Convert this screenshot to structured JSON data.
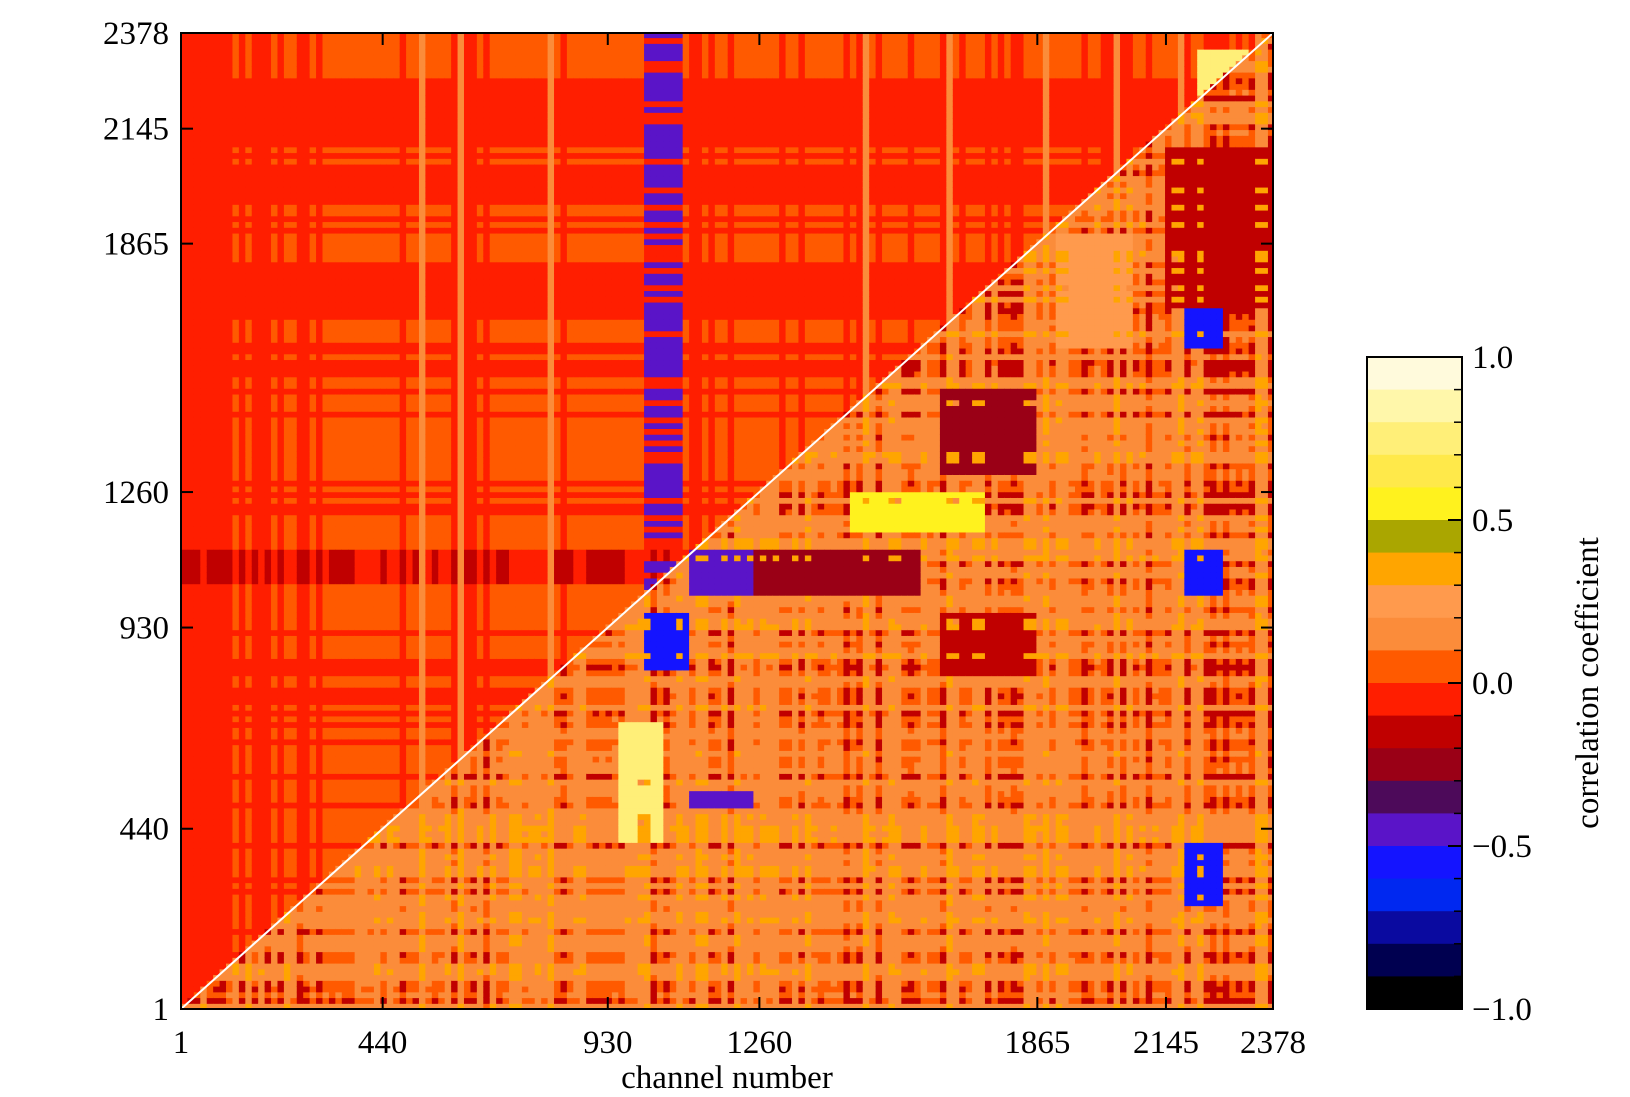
{
  "chart_data": {
    "type": "heatmap",
    "title": "",
    "xlabel": "channel number",
    "ylabel": "",
    "colorbar_label": "correlation coefficient",
    "xlim": [
      1,
      2378
    ],
    "ylim": [
      1,
      2378
    ],
    "x_ticks": [
      1,
      440,
      930,
      1260,
      1865,
      2145,
      2378
    ],
    "y_ticks": [
      1,
      440,
      930,
      1260,
      1865,
      2145,
      2378
    ],
    "x_tick_labels": [
      "1",
      "440",
      "930",
      "1260",
      "1865",
      "2145",
      "2378"
    ],
    "y_tick_labels": [
      "1",
      "440",
      "930",
      "1260",
      "1865",
      "2145",
      "2378"
    ],
    "colorbar_range": [
      -1.0,
      1.0
    ],
    "colorbar_tick_labels": [
      "1.0",
      "0.5",
      "0.0",
      "−0.5",
      "−1.0"
    ],
    "colorbar_tick_values": [
      1.0,
      0.5,
      0.0,
      -0.5,
      -1.0
    ],
    "colorbar_levels": [
      {
        "from": 0.9,
        "to": 1.0,
        "color": "#fffadc"
      },
      {
        "from": 0.8,
        "to": 0.9,
        "color": "#fff7aa"
      },
      {
        "from": 0.7,
        "to": 0.8,
        "color": "#ffef78"
      },
      {
        "from": 0.6,
        "to": 0.7,
        "color": "#ffe94a"
      },
      {
        "from": 0.5,
        "to": 0.6,
        "color": "#fff21e"
      },
      {
        "from": 0.4,
        "to": 0.5,
        "color": "#aaa600"
      },
      {
        "from": 0.3,
        "to": 0.4,
        "color": "#ffa500"
      },
      {
        "from": 0.2,
        "to": 0.3,
        "color": "#ff9a4d"
      },
      {
        "from": 0.1,
        "to": 0.2,
        "color": "#fb8c3a"
      },
      {
        "from": 0.0,
        "to": 0.1,
        "color": "#ff5a00"
      },
      {
        "from": -0.1,
        "to": 0.0,
        "color": "#ff1e00"
      },
      {
        "from": -0.2,
        "to": -0.1,
        "color": "#c00000"
      },
      {
        "from": -0.3,
        "to": -0.2,
        "color": "#9a0016"
      },
      {
        "from": -0.4,
        "to": -0.3,
        "color": "#4d0a5a"
      },
      {
        "from": -0.5,
        "to": -0.4,
        "color": "#5a14c8"
      },
      {
        "from": -0.6,
        "to": -0.5,
        "color": "#1414ff"
      },
      {
        "from": -0.7,
        "to": -0.6,
        "color": "#0028f0"
      },
      {
        "from": -0.8,
        "to": -0.7,
        "color": "#0a0aa0"
      },
      {
        "from": -0.9,
        "to": -0.8,
        "color": "#000050"
      },
      {
        "from": -1.0,
        "to": -0.9,
        "color": "#000000"
      }
    ],
    "diagonal": {
      "from": [
        1,
        1
      ],
      "to": [
        2378,
        2378
      ],
      "color": "#ffffff",
      "value": 1.0
    },
    "matrix_upper_left": {
      "description_values": "dominant level",
      "base_value": 0.05,
      "banded_value": -0.05,
      "bands_x": [
        [
          1,
          110
        ],
        [
          160,
          190
        ],
        [
          600,
          630
        ],
        [
          1000,
          1090
        ],
        [
          1100,
          1130
        ],
        [
          2000,
          2060
        ]
      ],
      "bands_y": [
        [
          2100,
          2260
        ],
        [
          1950,
          2030
        ],
        [
          1030,
          1110
        ],
        [
          1700,
          1800
        ]
      ],
      "dark_band_y": [
        1030,
        1110
      ],
      "dark_band_value": -0.2,
      "dark_band_x": [
        1000,
        1090
      ],
      "dark_band_x_value": -0.45,
      "yellow_patch": {
        "x": [
          2200,
          2330
        ],
        "y": [
          2220,
          2330
        ],
        "value": 0.7
      }
    },
    "matrix_lower_right": {
      "base_value": 0.15,
      "blocks": [
        {
          "x": [
            1000,
            1100
          ],
          "y": [
            820,
            960
          ],
          "value": -0.55
        },
        {
          "x": [
            1100,
            1240
          ],
          "y": [
            1000,
            1110
          ],
          "value": -0.5
        },
        {
          "x": [
            1240,
            1600
          ],
          "y": [
            1000,
            1110
          ],
          "value": -0.3
        },
        {
          "x": [
            1650,
            1850
          ],
          "y": [
            1300,
            1500
          ],
          "value": -0.25
        },
        {
          "x": [
            1650,
            1850
          ],
          "y": [
            800,
            960
          ],
          "value": -0.2
        },
        {
          "x": [
            2180,
            2260
          ],
          "y": [
            1600,
            1900
          ],
          "value": -0.55
        },
        {
          "x": [
            2180,
            2260
          ],
          "y": [
            1000,
            1110
          ],
          "value": -0.6
        },
        {
          "x": [
            2180,
            2260
          ],
          "y": [
            250,
            400
          ],
          "value": -0.55
        },
        {
          "x": [
            2130,
            2378
          ],
          "y": [
            1700,
            2100
          ],
          "value": -0.2
        },
        {
          "x": [
            950,
            1050
          ],
          "y": [
            400,
            700
          ],
          "value": 0.7
        },
        {
          "x": [
            1450,
            1750
          ],
          "y": [
            1150,
            1250
          ],
          "value": 0.5
        },
        {
          "x": [
            1100,
            1240
          ],
          "y": [
            480,
            520
          ],
          "value": -0.5
        },
        {
          "x": [
            1900,
            2060
          ],
          "y": [
            1600,
            1880
          ],
          "value": 0.2
        }
      ]
    }
  }
}
